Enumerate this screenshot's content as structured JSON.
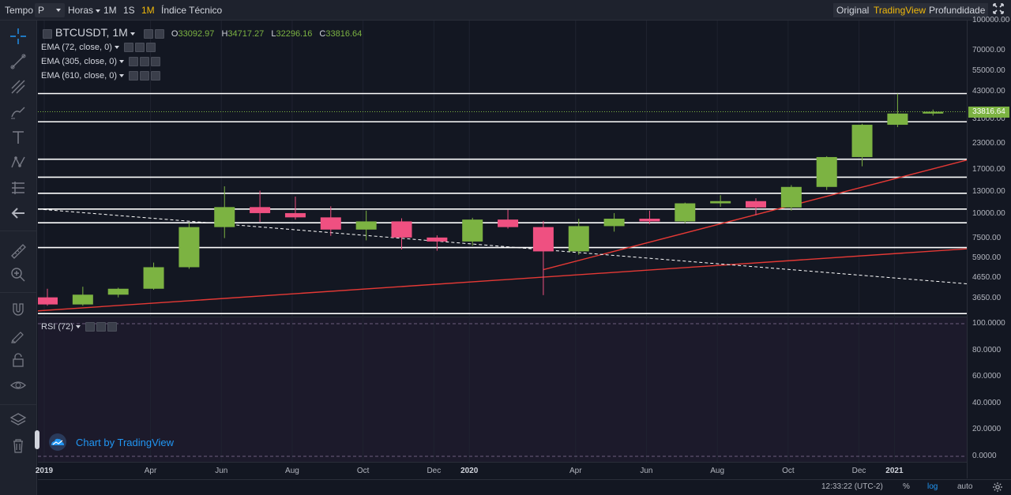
{
  "toolbar": {
    "tempo_label": "Tempo",
    "interval_select": "P",
    "hours_label": "Horas",
    "btn_1m_min": "1M",
    "btn_1s": "1S",
    "btn_1m_month": "1M",
    "indicator_label": "Índice Técnico",
    "view_original": "Original",
    "view_tradingview": "TradingView",
    "view_depth": "Profundidade"
  },
  "legend": {
    "symbol": "BTCUSDT, 1M",
    "open_key": "O",
    "open": "33092.97",
    "high_key": "H",
    "high": "34717.27",
    "low_key": "L",
    "low": "32296.16",
    "close_key": "C",
    "close": "33816.64",
    "ema1": "EMA (72, close, 0)",
    "ema2": "EMA (305, close, 0)",
    "ema3": "EMA (610, close, 0)",
    "rsi": "RSI (72)"
  },
  "price_axis": [
    "100000.00",
    "70000.00",
    "55000.00",
    "43000.00",
    "31000.00",
    "23000.00",
    "17000.00",
    "13000.00",
    "10000.00",
    "7500.00",
    "5900.00",
    "4650.00",
    "3650.00"
  ],
  "last_price": "33816.64",
  "rsi_axis": [
    "100.0000",
    "80.0000",
    "60.0000",
    "40.0000",
    "20.0000",
    "0.0000"
  ],
  "time_axis": [
    {
      "label": "2019",
      "bold": true
    },
    {
      "label": "Apr",
      "bold": false
    },
    {
      "label": "Jun",
      "bold": false
    },
    {
      "label": "Aug",
      "bold": false
    },
    {
      "label": "Oct",
      "bold": false
    },
    {
      "label": "Dec",
      "bold": false
    },
    {
      "label": "2020",
      "bold": true
    },
    {
      "label": "Apr",
      "bold": false
    },
    {
      "label": "Jun",
      "bold": false
    },
    {
      "label": "Aug",
      "bold": false
    },
    {
      "label": "Oct",
      "bold": false
    },
    {
      "label": "Dec",
      "bold": false
    },
    {
      "label": "2021",
      "bold": true
    }
  ],
  "bottom": {
    "clock": "12:33:22 (UTC-2)",
    "pct": "%",
    "log": "log",
    "auto": "auto"
  },
  "watermark": "Chart by TradingView",
  "colors": {
    "up": "#7cb342",
    "down": "#ef5081",
    "trend": "#e53935",
    "hline": "#ffffff",
    "accent": "#f0b90b"
  },
  "chart_data": {
    "type": "candlestick",
    "interval": "1M",
    "scale": "log",
    "y_range": [
      3100,
      120000
    ],
    "candles": [
      {
        "t": "2019-01",
        "o": 3700,
        "h": 4100,
        "l": 3350,
        "c": 3400
      },
      {
        "t": "2019-02",
        "o": 3400,
        "h": 4200,
        "l": 3350,
        "c": 3820
      },
      {
        "t": "2019-03",
        "o": 3820,
        "h": 4150,
        "l": 3700,
        "c": 4100
      },
      {
        "t": "2019-04",
        "o": 4100,
        "h": 5600,
        "l": 4050,
        "c": 5300
      },
      {
        "t": "2019-05",
        "o": 5300,
        "h": 9000,
        "l": 5200,
        "c": 8550
      },
      {
        "t": "2019-06",
        "o": 8550,
        "h": 13900,
        "l": 7500,
        "c": 10850
      },
      {
        "t": "2019-07",
        "o": 10850,
        "h": 13200,
        "l": 9100,
        "c": 10100
      },
      {
        "t": "2019-08",
        "o": 10100,
        "h": 12300,
        "l": 9350,
        "c": 9600
      },
      {
        "t": "2019-09",
        "o": 9600,
        "h": 10950,
        "l": 7700,
        "c": 8300
      },
      {
        "t": "2019-10",
        "o": 8300,
        "h": 10400,
        "l": 7300,
        "c": 9150
      },
      {
        "t": "2019-11",
        "o": 9150,
        "h": 9500,
        "l": 6550,
        "c": 7550
      },
      {
        "t": "2019-12",
        "o": 7550,
        "h": 7750,
        "l": 6450,
        "c": 7200
      },
      {
        "t": "2020-01",
        "o": 7200,
        "h": 9550,
        "l": 6850,
        "c": 9350
      },
      {
        "t": "2020-02",
        "o": 9350,
        "h": 10500,
        "l": 8400,
        "c": 8550
      },
      {
        "t": "2020-03",
        "o": 8550,
        "h": 9200,
        "l": 3800,
        "c": 6400
      },
      {
        "t": "2020-04",
        "o": 6400,
        "h": 9450,
        "l": 6150,
        "c": 8650
      },
      {
        "t": "2020-05",
        "o": 8650,
        "h": 10100,
        "l": 8100,
        "c": 9450
      },
      {
        "t": "2020-06",
        "o": 9450,
        "h": 10400,
        "l": 8850,
        "c": 9150
      },
      {
        "t": "2020-07",
        "o": 9150,
        "h": 11450,
        "l": 8950,
        "c": 11350
      },
      {
        "t": "2020-08",
        "o": 11350,
        "h": 12500,
        "l": 10900,
        "c": 11650
      },
      {
        "t": "2020-09",
        "o": 11650,
        "h": 12050,
        "l": 9850,
        "c": 10800
      },
      {
        "t": "2020-10",
        "o": 10800,
        "h": 14100,
        "l": 10400,
        "c": 13800
      },
      {
        "t": "2020-11",
        "o": 13800,
        "h": 19900,
        "l": 13300,
        "c": 19700
      },
      {
        "t": "2020-12",
        "o": 19700,
        "h": 29300,
        "l": 17650,
        "c": 28950
      },
      {
        "t": "2021-01",
        "o": 28950,
        "h": 41950,
        "l": 28150,
        "c": 33100
      },
      {
        "t": "2021-02",
        "o": 33092.97,
        "h": 34717.27,
        "l": 32296.16,
        "c": 33816.64
      }
    ],
    "horizontal_levels": [
      42000,
      30000,
      19200,
      15500,
      12800,
      10600,
      9000,
      6700,
      3050
    ],
    "trendlines": [
      {
        "style": "solid",
        "color": "#e53935",
        "from": {
          "t": "2019-01",
          "p": 3150
        },
        "to": {
          "t": "2021-02",
          "p": 6600
        }
      },
      {
        "style": "solid",
        "color": "#e53935",
        "from": {
          "t": "2020-03",
          "p": 5150
        },
        "to": {
          "t": "2021-02",
          "p": 19000
        }
      },
      {
        "style": "dashed",
        "color": "#ffffff",
        "from": {
          "t": "2019-01",
          "p": 10600
        },
        "to": {
          "t": "2021-02",
          "p": 4350
        }
      }
    ]
  }
}
